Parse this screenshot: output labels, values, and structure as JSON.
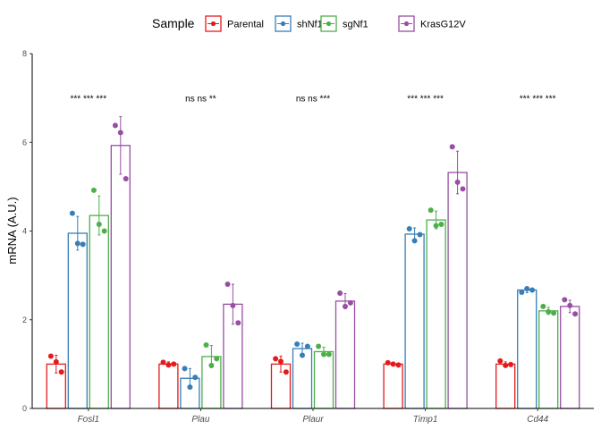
{
  "chart_data": {
    "type": "bar",
    "ylabel": "mRNA (A.U.)",
    "ylim": [
      0,
      8
    ],
    "yticks": [
      0,
      2,
      4,
      6,
      8
    ],
    "legend_title": "Sample",
    "legend_position": "top",
    "grid": false,
    "categories": [
      "Fosl1",
      "Plau",
      "Plaur",
      "Timp1",
      "Cd44"
    ],
    "series": [
      {
        "name": "Parental",
        "color": "#E41A1C",
        "values": [
          1.0,
          1.0,
          1.0,
          1.0,
          1.0
        ],
        "sd": [
          0.2,
          0.05,
          0.18,
          0.03,
          0.05
        ],
        "points": [
          [
            1.18,
            1.05,
            0.82
          ],
          [
            1.04,
            0.98,
            1.0
          ],
          [
            1.12,
            1.06,
            0.82
          ],
          [
            1.03,
            1.0,
            0.98
          ],
          [
            1.07,
            0.97,
            0.99
          ]
        ]
      },
      {
        "name": "shNf1",
        "color": "#377EB8",
        "values": [
          3.95,
          0.68,
          1.35,
          3.93,
          2.67
        ],
        "sd": [
          0.38,
          0.22,
          0.12,
          0.14,
          0.06
        ],
        "points": [
          [
            4.4,
            3.72,
            3.7
          ],
          [
            0.9,
            0.48,
            0.7
          ],
          [
            1.45,
            1.2,
            1.4
          ],
          [
            4.05,
            3.78,
            3.92
          ],
          [
            2.62,
            2.7,
            2.67
          ]
        ]
      },
      {
        "name": "sgNf1",
        "color": "#4DAF4A",
        "values": [
          4.35,
          1.17,
          1.28,
          4.25,
          2.2
        ],
        "sd": [
          0.44,
          0.25,
          0.1,
          0.2,
          0.08
        ],
        "points": [
          [
            4.92,
            4.15,
            4.0
          ],
          [
            1.43,
            0.97,
            1.12
          ],
          [
            1.4,
            1.22,
            1.22
          ],
          [
            4.47,
            4.12,
            4.15
          ],
          [
            2.3,
            2.18,
            2.15
          ]
        ]
      },
      {
        "name": "KrasG12V",
        "color": "#984EA3",
        "values": [
          5.93,
          2.35,
          2.42,
          5.32,
          2.3
        ],
        "sd": [
          0.65,
          0.45,
          0.17,
          0.48,
          0.14
        ],
        "points": [
          [
            6.38,
            6.22,
            5.18
          ],
          [
            2.8,
            2.32,
            1.93
          ],
          [
            2.6,
            2.3,
            2.38
          ],
          [
            5.9,
            5.1,
            4.95
          ],
          [
            2.45,
            2.32,
            2.13
          ]
        ]
      }
    ],
    "annotations": [
      "*** *** ***",
      "ns ns **",
      "ns ns ***",
      "*** *** ***",
      "*** *** ***"
    ],
    "annotation_y": 7.0
  }
}
